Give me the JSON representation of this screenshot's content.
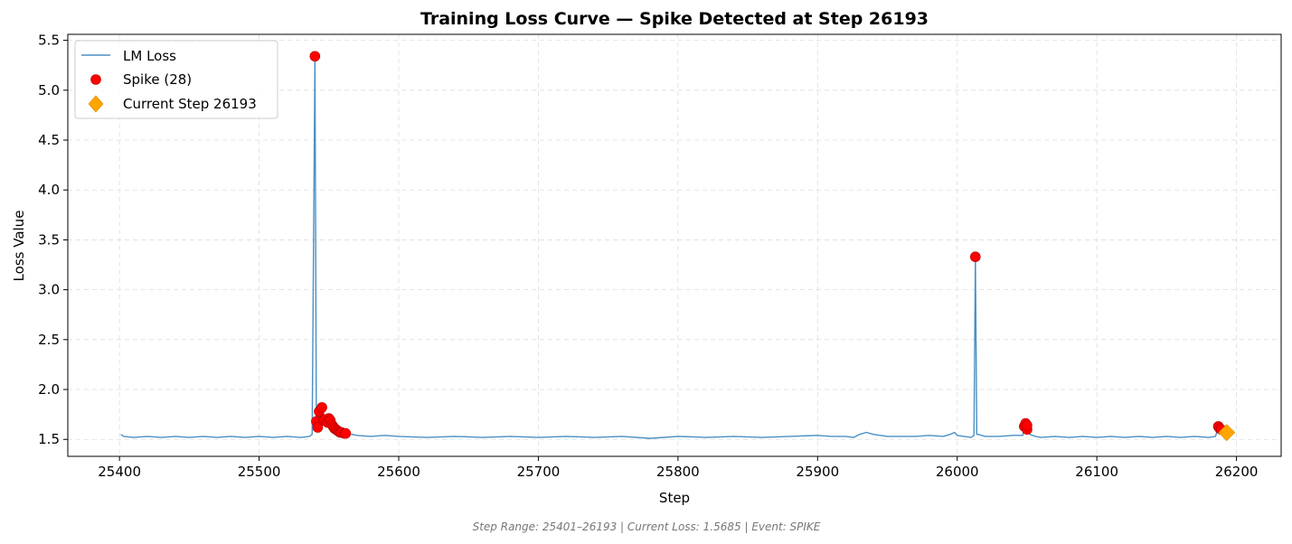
{
  "chart_data": {
    "type": "line",
    "title": "Training Loss Curve — Spike Detected at Step 26193",
    "xlabel": "Step",
    "ylabel": "Loss Value",
    "xlim": [
      25363,
      26232
    ],
    "ylim": [
      1.33,
      5.56
    ],
    "xticks": [
      25400,
      25500,
      25600,
      25700,
      25800,
      25900,
      26000,
      26100,
      26200
    ],
    "yticks": [
      1.5,
      2.0,
      2.5,
      3.0,
      3.5,
      4.0,
      4.5,
      5.0,
      5.5
    ],
    "grid": true,
    "legend_position": "top-left",
    "colors": {
      "line": "#4a90c4",
      "spike": "#ff0000",
      "spike_edge": "#b00000",
      "current": "#ffa500"
    },
    "series": [
      {
        "name": "LM Loss",
        "kind": "line",
        "x": [
          25401,
          25403,
          25410,
          25420,
          25430,
          25440,
          25450,
          25460,
          25470,
          25480,
          25490,
          25500,
          25510,
          25520,
          25530,
          25536,
          25538,
          25540,
          25541,
          25542,
          25543,
          25545,
          25547,
          25549,
          25550,
          25551,
          25552,
          25553,
          25555,
          25557,
          25559,
          25561,
          25563,
          25570,
          25580,
          25590,
          25600,
          25620,
          25640,
          25660,
          25680,
          25700,
          25720,
          25740,
          25760,
          25780,
          25800,
          25820,
          25840,
          25860,
          25880,
          25900,
          25910,
          25920,
          25926,
          25930,
          25935,
          25940,
          25950,
          25960,
          25970,
          25980,
          25990,
          25995,
          25998,
          26000,
          26005,
          26010,
          26012,
          26013,
          26014,
          26015,
          26020,
          26030,
          26040,
          26047,
          26048,
          26049,
          26050,
          26052,
          26056,
          26060,
          26070,
          26080,
          26090,
          26100,
          26110,
          26120,
          26130,
          26140,
          26150,
          26160,
          26170,
          26180,
          26185,
          26187,
          26189,
          26190,
          26193
        ],
        "y": [
          1.55,
          1.53,
          1.52,
          1.53,
          1.52,
          1.53,
          1.52,
          1.53,
          1.52,
          1.53,
          1.52,
          1.53,
          1.52,
          1.53,
          1.52,
          1.53,
          1.55,
          5.34,
          1.68,
          1.62,
          1.78,
          1.82,
          1.69,
          1.67,
          1.71,
          1.69,
          1.65,
          1.63,
          1.6,
          1.58,
          1.57,
          1.56,
          1.56,
          1.54,
          1.53,
          1.54,
          1.53,
          1.52,
          1.53,
          1.52,
          1.53,
          1.52,
          1.53,
          1.52,
          1.53,
          1.51,
          1.53,
          1.52,
          1.53,
          1.52,
          1.53,
          1.54,
          1.53,
          1.53,
          1.52,
          1.55,
          1.57,
          1.55,
          1.53,
          1.53,
          1.53,
          1.54,
          1.53,
          1.55,
          1.57,
          1.54,
          1.53,
          1.52,
          1.54,
          3.33,
          1.55,
          1.55,
          1.53,
          1.53,
          1.54,
          1.54,
          1.63,
          1.66,
          1.6,
          1.55,
          1.53,
          1.52,
          1.53,
          1.52,
          1.53,
          1.52,
          1.53,
          1.52,
          1.53,
          1.52,
          1.53,
          1.52,
          1.53,
          1.52,
          1.53,
          1.63,
          1.59,
          1.57,
          1.5685
        ]
      },
      {
        "name": "Spike (28)",
        "kind": "scatter",
        "x": [
          25540,
          25541,
          25542,
          25543,
          25545,
          25546,
          25547,
          25549,
          25550,
          25551,
          25552,
          25553,
          25554,
          25555,
          25556,
          25557,
          25558,
          25559,
          25561,
          25562,
          26013,
          26048,
          26049,
          26050,
          26050,
          26187,
          26188,
          26189
        ],
        "y": [
          5.34,
          1.68,
          1.62,
          1.78,
          1.82,
          1.69,
          1.7,
          1.67,
          1.71,
          1.69,
          1.65,
          1.63,
          1.61,
          1.6,
          1.59,
          1.58,
          1.57,
          1.57,
          1.56,
          1.56,
          3.33,
          1.63,
          1.66,
          1.6,
          1.64,
          1.63,
          1.61,
          1.6
        ]
      },
      {
        "name": "Current Step 26193",
        "kind": "marker",
        "x": [
          26193
        ],
        "y": [
          1.5685
        ]
      }
    ],
    "footer": "Step Range: 25401–26193 | Current Loss: 1.5685 | Event: SPIKE"
  }
}
